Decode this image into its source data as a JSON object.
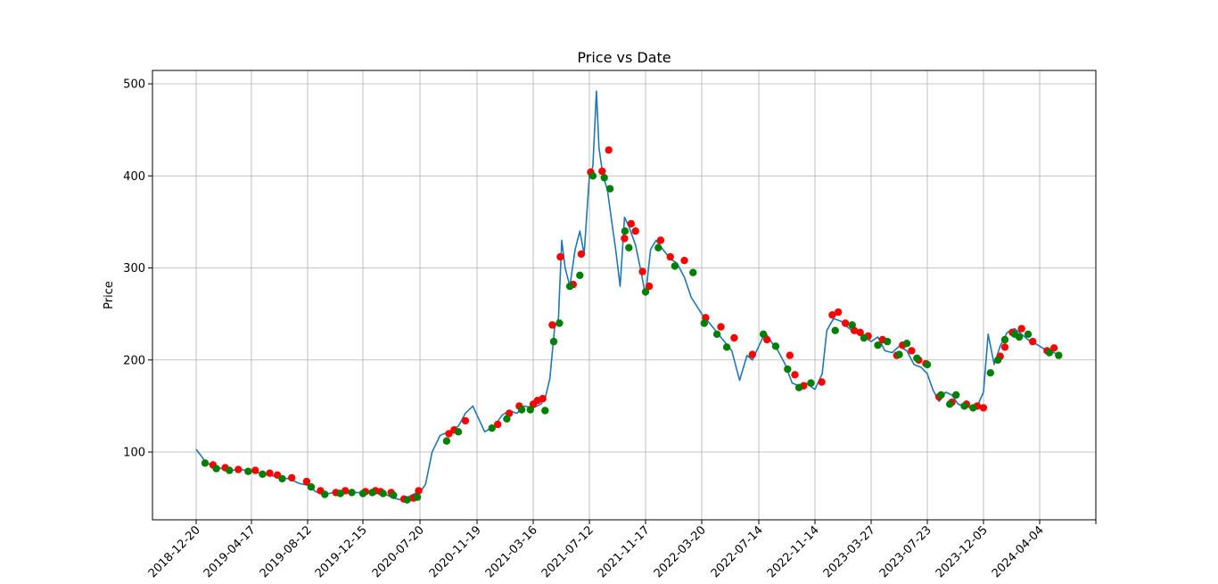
{
  "chart_data": {
    "type": "line",
    "title": "Price vs Date",
    "xlabel": "",
    "ylabel": "Price",
    "grid": true,
    "x_ticks": [
      "2018-12-20",
      "2019-04-17",
      "2019-08-12",
      "2019-12-15",
      "2020-07-20",
      "2020-11-19",
      "2021-03-16",
      "2021-07-12",
      "2021-11-17",
      "2022-03-20",
      "2022-07-14",
      "2022-11-14",
      "2023-03-27",
      "2023-07-23",
      "2023-12-05",
      "2024-04-04"
    ],
    "y_ticks": [
      100,
      200,
      300,
      400,
      500
    ],
    "ylim": [
      25,
      515
    ],
    "colors": {
      "line": "#1f77b4",
      "buy": "#008000",
      "sell": "#ff0000",
      "grid": "#b0b0b0"
    },
    "series": [
      {
        "values": [
          [
            "2018-12-20",
            103
          ],
          [
            "2019-01-08",
            90
          ],
          [
            "2019-01-25",
            84
          ],
          [
            "2019-02-14",
            82
          ],
          [
            "2019-03-05",
            80
          ],
          [
            "2019-03-25",
            81
          ],
          [
            "2019-04-17",
            79
          ],
          [
            "2019-05-05",
            77
          ],
          [
            "2019-05-25",
            75
          ],
          [
            "2019-06-15",
            72
          ],
          [
            "2019-07-05",
            71
          ],
          [
            "2019-07-25",
            66
          ],
          [
            "2019-08-12",
            64
          ],
          [
            "2019-08-30",
            57
          ],
          [
            "2019-09-20",
            54
          ],
          [
            "2019-10-10",
            56
          ],
          [
            "2019-10-30",
            55
          ],
          [
            "2019-11-20",
            56
          ],
          [
            "2019-12-15",
            56
          ],
          [
            "2020-01-10",
            57
          ],
          [
            "2020-02-10",
            56
          ],
          [
            "2020-03-10",
            54
          ],
          [
            "2020-04-10",
            50
          ],
          [
            "2020-05-10",
            48
          ],
          [
            "2020-06-10",
            52
          ],
          [
            "2020-07-01",
            55
          ],
          [
            "2020-07-20",
            56
          ],
          [
            "2020-08-01",
            65
          ],
          [
            "2020-08-15",
            100
          ],
          [
            "2020-09-01",
            118
          ],
          [
            "2020-09-20",
            122
          ],
          [
            "2020-10-10",
            128
          ],
          [
            "2020-10-25",
            142
          ],
          [
            "2020-11-10",
            150
          ],
          [
            "2020-11-19",
            140
          ],
          [
            "2020-12-05",
            122
          ],
          [
            "2020-12-25",
            128
          ],
          [
            "2021-01-10",
            140
          ],
          [
            "2021-01-25",
            145
          ],
          [
            "2021-02-10",
            142
          ],
          [
            "2021-02-25",
            150
          ],
          [
            "2021-03-16",
            148
          ],
          [
            "2021-04-01",
            152
          ],
          [
            "2021-04-10",
            158
          ],
          [
            "2021-04-20",
            180
          ],
          [
            "2021-04-30",
            235
          ],
          [
            "2021-05-08",
            245
          ],
          [
            "2021-05-15",
            330
          ],
          [
            "2021-05-22",
            300
          ],
          [
            "2021-06-01",
            280
          ],
          [
            "2021-06-12",
            320
          ],
          [
            "2021-06-22",
            340
          ],
          [
            "2021-07-01",
            315
          ],
          [
            "2021-07-12",
            400
          ],
          [
            "2021-07-20",
            410
          ],
          [
            "2021-07-28",
            492
          ],
          [
            "2021-08-03",
            430
          ],
          [
            "2021-08-12",
            400
          ],
          [
            "2021-08-22",
            385
          ],
          [
            "2021-09-01",
            350
          ],
          [
            "2021-09-10",
            320
          ],
          [
            "2021-09-20",
            280
          ],
          [
            "2021-09-30",
            355
          ],
          [
            "2021-10-10",
            345
          ],
          [
            "2021-10-25",
            325
          ],
          [
            "2021-11-05",
            300
          ],
          [
            "2021-11-17",
            270
          ],
          [
            "2021-11-28",
            320
          ],
          [
            "2021-12-10",
            330
          ],
          [
            "2021-12-25",
            320
          ],
          [
            "2022-01-10",
            310
          ],
          [
            "2022-01-25",
            305
          ],
          [
            "2022-02-10",
            290
          ],
          [
            "2022-02-25",
            268
          ],
          [
            "2022-03-20",
            250
          ],
          [
            "2022-04-05",
            240
          ],
          [
            "2022-04-20",
            230
          ],
          [
            "2022-05-05",
            220
          ],
          [
            "2022-05-20",
            210
          ],
          [
            "2022-06-05",
            178
          ],
          [
            "2022-06-20",
            205
          ],
          [
            "2022-07-01",
            200
          ],
          [
            "2022-07-14",
            215
          ],
          [
            "2022-07-28",
            230
          ],
          [
            "2022-08-10",
            220
          ],
          [
            "2022-08-25",
            210
          ],
          [
            "2022-09-10",
            195
          ],
          [
            "2022-09-25",
            175
          ],
          [
            "2022-10-10",
            172
          ],
          [
            "2022-10-25",
            175
          ],
          [
            "2022-11-14",
            168
          ],
          [
            "2022-12-01",
            185
          ],
          [
            "2022-12-12",
            232
          ],
          [
            "2022-12-28",
            245
          ],
          [
            "2023-01-15",
            242
          ],
          [
            "2023-02-01",
            235
          ],
          [
            "2023-02-15",
            230
          ],
          [
            "2023-03-01",
            228
          ],
          [
            "2023-03-27",
            220
          ],
          [
            "2023-04-10",
            225
          ],
          [
            "2023-04-25",
            210
          ],
          [
            "2023-05-10",
            208
          ],
          [
            "2023-05-25",
            215
          ],
          [
            "2023-06-10",
            210
          ],
          [
            "2023-06-25",
            195
          ],
          [
            "2023-07-10",
            192
          ],
          [
            "2023-07-23",
            185
          ],
          [
            "2023-08-05",
            168
          ],
          [
            "2023-08-20",
            155
          ],
          [
            "2023-09-05",
            165
          ],
          [
            "2023-09-20",
            162
          ],
          [
            "2023-10-05",
            152
          ],
          [
            "2023-10-20",
            150
          ],
          [
            "2023-11-05",
            148
          ],
          [
            "2023-11-20",
            150
          ],
          [
            "2023-12-05",
            165
          ],
          [
            "2023-12-15",
            228
          ],
          [
            "2023-12-28",
            195
          ],
          [
            "2024-01-10",
            215
          ],
          [
            "2024-01-25",
            230
          ],
          [
            "2024-02-10",
            234
          ],
          [
            "2024-02-25",
            228
          ],
          [
            "2024-03-10",
            222
          ],
          [
            "2024-03-25",
            218
          ],
          [
            "2024-04-04",
            215
          ],
          [
            "2024-04-20",
            210
          ],
          [
            "2024-05-05",
            208
          ],
          [
            "2024-05-15",
            205
          ]
        ]
      }
    ],
    "buy_signals": [
      [
        "2019-01-08",
        88
      ],
      [
        "2019-02-01",
        82
      ],
      [
        "2019-03-01",
        80
      ],
      [
        "2019-04-10",
        79
      ],
      [
        "2019-05-10",
        76
      ],
      [
        "2019-06-20",
        71
      ],
      [
        "2019-08-20",
        62
      ],
      [
        "2019-09-20",
        54
      ],
      [
        "2019-10-25",
        55
      ],
      [
        "2019-11-20",
        56
      ],
      [
        "2019-12-15",
        55
      ],
      [
        "2020-01-20",
        56
      ],
      [
        "2020-03-01",
        55
      ],
      [
        "2020-04-10",
        53
      ],
      [
        "2020-06-01",
        48
      ],
      [
        "2020-07-10",
        51
      ],
      [
        "2020-09-15",
        112
      ],
      [
        "2020-10-10",
        122
      ],
      [
        "2020-12-20",
        126
      ],
      [
        "2021-01-20",
        136
      ],
      [
        "2021-02-20",
        146
      ],
      [
        "2021-03-10",
        146
      ],
      [
        "2021-04-10",
        145
      ],
      [
        "2021-04-28",
        220
      ],
      [
        "2021-05-10",
        240
      ],
      [
        "2021-06-01",
        280
      ],
      [
        "2021-06-22",
        292
      ],
      [
        "2021-07-20",
        400
      ],
      [
        "2021-08-15",
        398
      ],
      [
        "2021-08-28",
        386
      ],
      [
        "2021-10-01",
        340
      ],
      [
        "2021-10-10",
        322
      ],
      [
        "2021-11-17",
        274
      ],
      [
        "2021-12-15",
        322
      ],
      [
        "2022-01-20",
        302
      ],
      [
        "2022-03-01",
        295
      ],
      [
        "2022-03-25",
        240
      ],
      [
        "2022-04-20",
        228
      ],
      [
        "2022-05-10",
        214
      ],
      [
        "2022-07-24",
        228
      ],
      [
        "2022-08-20",
        215
      ],
      [
        "2022-09-15",
        190
      ],
      [
        "2022-10-10",
        170
      ],
      [
        "2022-11-05",
        175
      ],
      [
        "2023-01-01",
        232
      ],
      [
        "2023-02-10",
        238
      ],
      [
        "2023-03-10",
        224
      ],
      [
        "2023-04-10",
        216
      ],
      [
        "2023-04-30",
        220
      ],
      [
        "2023-05-25",
        206
      ],
      [
        "2023-06-10",
        218
      ],
      [
        "2023-07-01",
        202
      ],
      [
        "2023-07-23",
        195
      ],
      [
        "2023-08-25",
        162
      ],
      [
        "2023-09-15",
        152
      ],
      [
        "2023-09-30",
        162
      ],
      [
        "2023-10-20",
        150
      ],
      [
        "2023-11-10",
        148
      ],
      [
        "2023-12-20",
        186
      ],
      [
        "2024-01-05",
        200
      ],
      [
        "2024-01-20",
        222
      ],
      [
        "2024-02-10",
        228
      ],
      [
        "2024-02-20",
        225
      ],
      [
        "2024-03-10",
        228
      ],
      [
        "2024-04-25",
        208
      ],
      [
        "2024-05-15",
        205
      ]
    ],
    "sell_signals": [
      [
        "2019-01-25",
        86
      ],
      [
        "2019-02-20",
        83
      ],
      [
        "2019-03-20",
        81
      ],
      [
        "2019-04-25",
        80
      ],
      [
        "2019-05-25",
        77
      ],
      [
        "2019-06-10",
        75
      ],
      [
        "2019-07-10",
        72
      ],
      [
        "2019-08-10",
        68
      ],
      [
        "2019-09-10",
        58
      ],
      [
        "2019-10-15",
        56
      ],
      [
        "2019-11-05",
        58
      ],
      [
        "2019-12-25",
        57
      ],
      [
        "2020-02-01",
        58
      ],
      [
        "2020-02-20",
        57
      ],
      [
        "2020-04-01",
        56
      ],
      [
        "2020-05-20",
        49
      ],
      [
        "2020-06-25",
        50
      ],
      [
        "2020-07-15",
        58
      ],
      [
        "2020-09-20",
        120
      ],
      [
        "2020-10-01",
        124
      ],
      [
        "2020-10-25",
        134
      ],
      [
        "2021-01-01",
        130
      ],
      [
        "2021-01-25",
        142
      ],
      [
        "2021-02-15",
        150
      ],
      [
        "2021-03-16",
        152
      ],
      [
        "2021-03-25",
        156
      ],
      [
        "2021-04-05",
        158
      ],
      [
        "2021-04-25",
        238
      ],
      [
        "2021-05-12",
        312
      ],
      [
        "2021-06-08",
        282
      ],
      [
        "2021-06-25",
        315
      ],
      [
        "2021-07-15",
        404
      ],
      [
        "2021-08-10",
        405
      ],
      [
        "2021-08-25",
        428
      ],
      [
        "2021-09-30",
        332
      ],
      [
        "2021-10-15",
        348
      ],
      [
        "2021-10-25",
        340
      ],
      [
        "2021-11-10",
        296
      ],
      [
        "2021-11-25",
        280
      ],
      [
        "2021-12-20",
        330
      ],
      [
        "2022-01-10",
        312
      ],
      [
        "2022-02-10",
        308
      ],
      [
        "2022-03-28",
        246
      ],
      [
        "2022-04-28",
        236
      ],
      [
        "2022-05-25",
        224
      ],
      [
        "2022-07-01",
        206
      ],
      [
        "2022-08-01",
        222
      ],
      [
        "2022-09-20",
        205
      ],
      [
        "2022-10-01",
        184
      ],
      [
        "2022-10-20",
        172
      ],
      [
        "2022-11-30",
        176
      ],
      [
        "2022-12-25",
        249
      ],
      [
        "2023-01-08",
        252
      ],
      [
        "2023-01-25",
        240
      ],
      [
        "2023-02-15",
        232
      ],
      [
        "2023-03-01",
        230
      ],
      [
        "2023-03-20",
        226
      ],
      [
        "2023-04-20",
        222
      ],
      [
        "2023-05-20",
        205
      ],
      [
        "2023-06-01",
        216
      ],
      [
        "2023-06-20",
        210
      ],
      [
        "2023-07-05",
        200
      ],
      [
        "2023-07-20",
        196
      ],
      [
        "2023-08-20",
        160
      ],
      [
        "2023-09-20",
        154
      ],
      [
        "2023-10-25",
        152
      ],
      [
        "2023-11-20",
        150
      ],
      [
        "2023-12-05",
        148
      ],
      [
        "2024-01-10",
        204
      ],
      [
        "2024-01-20",
        214
      ],
      [
        "2024-02-05",
        230
      ],
      [
        "2024-02-25",
        234
      ],
      [
        "2024-03-20",
        220
      ],
      [
        "2024-04-20",
        210
      ],
      [
        "2024-05-05",
        213
      ]
    ]
  }
}
